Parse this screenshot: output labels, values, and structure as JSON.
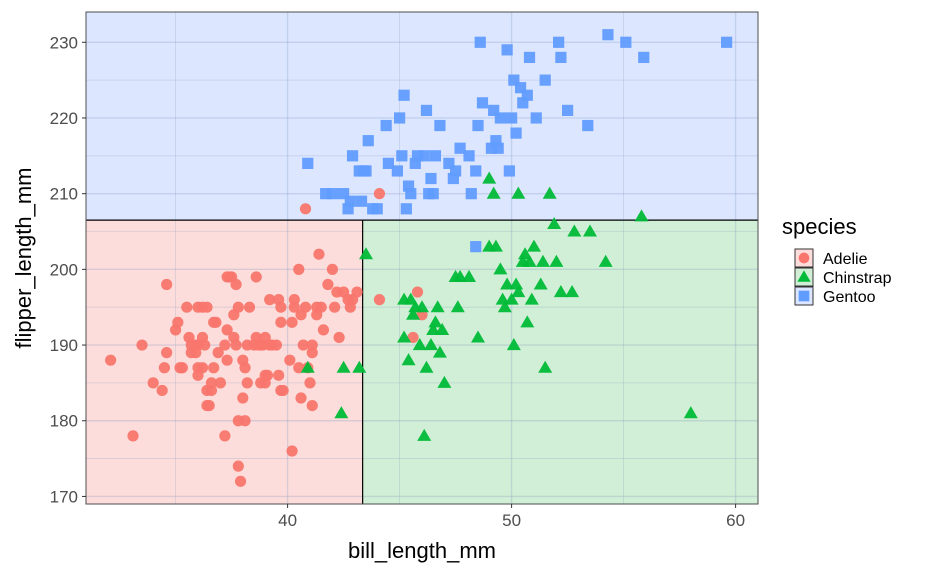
{
  "chart_data": {
    "type": "scatter",
    "title": "",
    "xlabel": "bill_length_mm",
    "ylabel": "flipper_length_mm",
    "xlim": [
      31.0,
      61.0
    ],
    "ylim": [
      169.0,
      234.0
    ],
    "xticks": [
      40,
      50,
      60
    ],
    "yticks": [
      170,
      180,
      190,
      200,
      210,
      220,
      230
    ],
    "grid": true,
    "legend": {
      "title": "species",
      "position": "right"
    },
    "decision_regions": {
      "x_split": 43.35,
      "y_split": 206.5,
      "regions": [
        {
          "class": "Gentoo",
          "x": [
            31.0,
            61.0
          ],
          "y": [
            206.5,
            234.0
          ]
        },
        {
          "class": "Adelie",
          "x": [
            31.0,
            43.35
          ],
          "y": [
            169.0,
            206.5
          ]
        },
        {
          "class": "Chinstrap",
          "x": [
            43.35,
            61.0
          ],
          "y": [
            169.0,
            206.5
          ]
        }
      ]
    },
    "series": [
      {
        "name": "Adelie",
        "color": "#F8766D",
        "region_color": "#FDDDDB",
        "marker": "circle",
        "points": [
          [
            32.1,
            188
          ],
          [
            33.1,
            178
          ],
          [
            33.5,
            190
          ],
          [
            34.0,
            185
          ],
          [
            34.4,
            184
          ],
          [
            34.5,
            187
          ],
          [
            34.6,
            198
          ],
          [
            34.6,
            189
          ],
          [
            35.0,
            192
          ],
          [
            35.1,
            193
          ],
          [
            35.2,
            187
          ],
          [
            35.3,
            187
          ],
          [
            35.5,
            195
          ],
          [
            35.6,
            191
          ],
          [
            35.7,
            189
          ],
          [
            35.7,
            190
          ],
          [
            35.9,
            190
          ],
          [
            35.9,
            189
          ],
          [
            36.0,
            186
          ],
          [
            36.0,
            190
          ],
          [
            36.0,
            195
          ],
          [
            36.0,
            187
          ],
          [
            36.2,
            187
          ],
          [
            36.2,
            195
          ],
          [
            36.2,
            191
          ],
          [
            36.3,
            190
          ],
          [
            36.4,
            184
          ],
          [
            36.4,
            182
          ],
          [
            36.4,
            195
          ],
          [
            36.5,
            182
          ],
          [
            36.6,
            185
          ],
          [
            36.6,
            184
          ],
          [
            36.7,
            193
          ],
          [
            36.7,
            187
          ],
          [
            36.8,
            193
          ],
          [
            36.9,
            189
          ],
          [
            37.0,
            185
          ],
          [
            37.2,
            178
          ],
          [
            37.2,
            190
          ],
          [
            37.3,
            188
          ],
          [
            37.3,
            192
          ],
          [
            37.3,
            199
          ],
          [
            37.4,
            199
          ],
          [
            37.5,
            199
          ],
          [
            37.6,
            191
          ],
          [
            37.6,
            194
          ],
          [
            37.7,
            198
          ],
          [
            37.7,
            190
          ],
          [
            37.8,
            195
          ],
          [
            37.8,
            180
          ],
          [
            37.8,
            174
          ],
          [
            37.9,
            172
          ],
          [
            38.0,
            183
          ],
          [
            38.0,
            188
          ],
          [
            38.1,
            180
          ],
          [
            38.1,
            187
          ],
          [
            38.2,
            185
          ],
          [
            38.2,
            190
          ],
          [
            38.3,
            195
          ],
          [
            38.5,
            190
          ],
          [
            38.6,
            191
          ],
          [
            38.6,
            199
          ],
          [
            38.7,
            190
          ],
          [
            38.8,
            190
          ],
          [
            38.8,
            185
          ],
          [
            38.9,
            190
          ],
          [
            39.0,
            185
          ],
          [
            39.0,
            186
          ],
          [
            39.0,
            191
          ],
          [
            39.1,
            186
          ],
          [
            39.2,
            196
          ],
          [
            39.2,
            190
          ],
          [
            39.3,
            190
          ],
          [
            39.5,
            190
          ],
          [
            39.6,
            186
          ],
          [
            39.6,
            196
          ],
          [
            39.7,
            184
          ],
          [
            39.7,
            193
          ],
          [
            39.7,
            195
          ],
          [
            39.8,
            184
          ],
          [
            40.1,
            188
          ],
          [
            40.2,
            176
          ],
          [
            40.2,
            193
          ],
          [
            40.3,
            195
          ],
          [
            40.3,
            196
          ],
          [
            40.5,
            187
          ],
          [
            40.5,
            200
          ],
          [
            40.6,
            194
          ],
          [
            40.6,
            183
          ],
          [
            40.7,
            190
          ],
          [
            40.8,
            195
          ],
          [
            40.9,
            187
          ],
          [
            41.0,
            185
          ],
          [
            41.1,
            190
          ],
          [
            41.1,
            182
          ],
          [
            41.1,
            189
          ],
          [
            41.3,
            195
          ],
          [
            41.3,
            194
          ],
          [
            41.4,
            202
          ],
          [
            41.5,
            195
          ],
          [
            41.6,
            192
          ],
          [
            41.8,
            198
          ],
          [
            42.0,
            200
          ],
          [
            42.1,
            195
          ],
          [
            42.2,
            197
          ],
          [
            42.3,
            191
          ],
          [
            42.5,
            197
          ],
          [
            42.7,
            196
          ],
          [
            42.8,
            195
          ],
          [
            42.9,
            196
          ],
          [
            43.1,
            197
          ],
          [
            40.8,
            208
          ],
          [
            44.1,
            210
          ],
          [
            44.1,
            196
          ],
          [
            45.6,
            191
          ],
          [
            46.0,
            194
          ],
          [
            45.8,
            197
          ]
        ]
      },
      {
        "name": "Chinstrap",
        "color": "#00BA38",
        "region_color": "#D0EFD6",
        "marker": "triangle",
        "points": [
          [
            40.9,
            187
          ],
          [
            42.4,
            181
          ],
          [
            42.5,
            187
          ],
          [
            43.2,
            187
          ],
          [
            43.5,
            202
          ],
          [
            45.2,
            191
          ],
          [
            45.2,
            196
          ],
          [
            45.4,
            188
          ],
          [
            45.5,
            196
          ],
          [
            45.6,
            194
          ],
          [
            45.7,
            195
          ],
          [
            45.9,
            190
          ],
          [
            46.0,
            195
          ],
          [
            46.1,
            178
          ],
          [
            46.2,
            187
          ],
          [
            46.4,
            190
          ],
          [
            46.5,
            192
          ],
          [
            46.6,
            193
          ],
          [
            46.7,
            195
          ],
          [
            46.8,
            189
          ],
          [
            46.9,
            192
          ],
          [
            47.0,
            185
          ],
          [
            47.5,
            199
          ],
          [
            47.6,
            195
          ],
          [
            47.7,
            199
          ],
          [
            48.1,
            199
          ],
          [
            48.5,
            191
          ],
          [
            49.0,
            203
          ],
          [
            49.2,
            210
          ],
          [
            49.3,
            203
          ],
          [
            49.5,
            200
          ],
          [
            49.6,
            196
          ],
          [
            49.7,
            195
          ],
          [
            49.8,
            198
          ],
          [
            50.0,
            196
          ],
          [
            50.1,
            190
          ],
          [
            50.2,
            198
          ],
          [
            50.3,
            197
          ],
          [
            50.5,
            201
          ],
          [
            50.6,
            202
          ],
          [
            50.7,
            193
          ],
          [
            50.8,
            201
          ],
          [
            50.9,
            196
          ],
          [
            51.0,
            203
          ],
          [
            51.3,
            198
          ],
          [
            51.4,
            201
          ],
          [
            51.5,
            187
          ],
          [
            51.7,
            210
          ],
          [
            51.9,
            206
          ],
          [
            52.0,
            201
          ],
          [
            52.2,
            197
          ],
          [
            52.7,
            197
          ],
          [
            53.5,
            205
          ],
          [
            54.2,
            201
          ],
          [
            55.8,
            207
          ],
          [
            58.0,
            181
          ],
          [
            52.8,
            205
          ],
          [
            49.0,
            212
          ],
          [
            50.3,
            210
          ]
        ]
      },
      {
        "name": "Gentoo",
        "color": "#619CFF",
        "region_color": "#DCE6FF",
        "marker": "square",
        "points": [
          [
            40.9,
            214
          ],
          [
            41.7,
            210
          ],
          [
            42.0,
            210
          ],
          [
            42.5,
            210
          ],
          [
            42.7,
            208
          ],
          [
            42.8,
            209
          ],
          [
            42.9,
            215
          ],
          [
            43.2,
            213
          ],
          [
            43.3,
            209
          ],
          [
            43.4,
            213
          ],
          [
            43.5,
            213
          ],
          [
            43.6,
            217
          ],
          [
            43.8,
            208
          ],
          [
            44.0,
            208
          ],
          [
            44.4,
            219
          ],
          [
            44.5,
            214
          ],
          [
            44.9,
            213
          ],
          [
            45.0,
            220
          ],
          [
            45.1,
            215
          ],
          [
            45.2,
            223
          ],
          [
            45.3,
            208
          ],
          [
            45.4,
            211
          ],
          [
            45.5,
            210
          ],
          [
            45.7,
            214
          ],
          [
            45.8,
            215
          ],
          [
            46.1,
            215
          ],
          [
            46.2,
            221
          ],
          [
            46.3,
            210
          ],
          [
            46.4,
            212
          ],
          [
            46.5,
            210
          ],
          [
            46.6,
            215
          ],
          [
            46.8,
            219
          ],
          [
            47.2,
            214
          ],
          [
            47.4,
            212
          ],
          [
            47.5,
            213
          ],
          [
            47.7,
            216
          ],
          [
            48.1,
            215
          ],
          [
            48.2,
            210
          ],
          [
            48.4,
            213
          ],
          [
            48.5,
            219
          ],
          [
            48.6,
            230
          ],
          [
            48.7,
            222
          ],
          [
            49.1,
            216
          ],
          [
            49.2,
            221
          ],
          [
            49.3,
            217
          ],
          [
            49.4,
            216
          ],
          [
            49.5,
            220
          ],
          [
            49.8,
            229
          ],
          [
            49.9,
            213
          ],
          [
            50.0,
            220
          ],
          [
            50.1,
            225
          ],
          [
            50.2,
            218
          ],
          [
            50.4,
            224
          ],
          [
            50.5,
            222
          ],
          [
            50.7,
            223
          ],
          [
            50.8,
            228
          ],
          [
            51.1,
            220
          ],
          [
            51.5,
            225
          ],
          [
            52.1,
            230
          ],
          [
            52.2,
            228
          ],
          [
            52.5,
            221
          ],
          [
            53.4,
            219
          ],
          [
            54.3,
            231
          ],
          [
            55.1,
            230
          ],
          [
            55.9,
            228
          ],
          [
            59.6,
            230
          ],
          [
            48.4,
            203
          ]
        ]
      }
    ]
  }
}
